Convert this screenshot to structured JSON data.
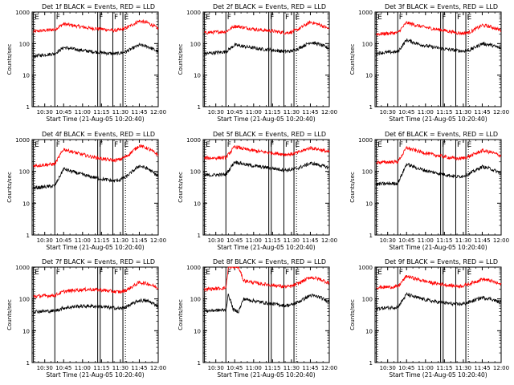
{
  "figure": {
    "panel_titles": [
      "Det 1f BLACK = Events, RED = LLD",
      "Det 2f BLACK = Events, RED = LLD",
      "Det 3f BLACK = Events, RED = LLD",
      "Det 4f BLACK = Events, RED = LLD",
      "Det 5f BLACK = Events, RED = LLD",
      "Det 6f BLACK = Events, RED = LLD",
      "Det 7f BLACK = Events, RED = LLD",
      "Det 8f BLACK = Events, RED = LLD",
      "Det 9f BLACK = Events, RED = LLD"
    ],
    "xlabel": "Start Time (21-Aug-05 10:20:40)",
    "ylabel": "Counts/sec"
  },
  "chart_data": {
    "type": "line",
    "layout": "3x3 grid of panels",
    "x_tick_labels": [
      "10:30",
      "10:45",
      "11:00",
      "11:15",
      "11:30",
      "11:45",
      "12:00"
    ],
    "x_tick_minutes": [
      30,
      45,
      60,
      75,
      90,
      105,
      120
    ],
    "x_range_minutes": [
      20,
      120
    ],
    "y_scale": "log",
    "y_range": [
      1,
      1000
    ],
    "y_tick_labels": [
      "1",
      "10",
      "100",
      "1000"
    ],
    "y_tick_values": [
      1,
      10,
      100,
      1000
    ],
    "flag_lines": [
      {
        "time": "10:21",
        "label": "E",
        "style": "solid"
      },
      {
        "time": "10:22",
        "label": "",
        "style": "dotted"
      },
      {
        "time": "10:38",
        "label": "F",
        "style": "solid"
      },
      {
        "time": "11:12",
        "label": "F",
        "style": "solid"
      },
      {
        "time": "11:14",
        "label": "",
        "style": "solid"
      },
      {
        "time": "11:24",
        "label": "F",
        "style": "solid"
      },
      {
        "time": "11:32",
        "label": "E",
        "style": "solid"
      },
      {
        "time": "11:34",
        "label": "",
        "style": "dotted"
      },
      {
        "time": "12:00",
        "label": "",
        "style": "dotted"
      }
    ],
    "colors": {
      "events": "#000000",
      "lld": "#ff0000"
    },
    "panels": [
      {
        "detector": "1f",
        "series": [
          {
            "name": "LLD",
            "color": "#ff0000",
            "x": [
              21,
              38,
              45,
              55,
              65,
              75,
              85,
              90,
              95,
              105,
              112,
              120
            ],
            "y": [
              240,
              280,
              420,
              360,
              310,
              290,
              260,
              270,
              320,
              520,
              450,
              300
            ]
          },
          {
            "name": "Events",
            "color": "#000000",
            "x": [
              21,
              38,
              45,
              55,
              65,
              75,
              85,
              90,
              95,
              105,
              112,
              120
            ],
            "y": [
              40,
              48,
              75,
              65,
              57,
              52,
              47,
              50,
              57,
              90,
              80,
              55
            ]
          }
        ]
      },
      {
        "detector": "2f",
        "series": [
          {
            "name": "LLD",
            "color": "#ff0000",
            "x": [
              21,
              38,
              45,
              55,
              65,
              75,
              85,
              90,
              95,
              105,
              112,
              120
            ],
            "y": [
              220,
              240,
              360,
              310,
              270,
              250,
              220,
              230,
              280,
              480,
              400,
              290
            ]
          },
          {
            "name": "Events",
            "color": "#000000",
            "x": [
              21,
              38,
              45,
              55,
              65,
              75,
              85,
              90,
              95,
              105,
              112,
              120
            ],
            "y": [
              48,
              55,
              90,
              78,
              68,
              62,
              56,
              58,
              68,
              110,
              95,
              70
            ]
          }
        ]
      },
      {
        "detector": "3f",
        "series": [
          {
            "name": "LLD",
            "color": "#ff0000",
            "x": [
              21,
              38,
              45,
              55,
              65,
              75,
              85,
              90,
              95,
              105,
              112,
              120
            ],
            "y": [
              200,
              220,
              460,
              360,
              300,
              260,
              220,
              210,
              230,
              380,
              340,
              260
            ]
          },
          {
            "name": "Events",
            "color": "#000000",
            "x": [
              21,
              38,
              45,
              55,
              65,
              75,
              85,
              90,
              95,
              105,
              112,
              120
            ],
            "y": [
              50,
              55,
              130,
              95,
              78,
              68,
              60,
              58,
              62,
              100,
              90,
              70
            ]
          }
        ]
      },
      {
        "detector": "4f",
        "series": [
          {
            "name": "LLD",
            "color": "#ff0000",
            "x": [
              21,
              38,
              45,
              55,
              65,
              75,
              85,
              90,
              95,
              105,
              112,
              120
            ],
            "y": [
              150,
              170,
              500,
              380,
              300,
              250,
              220,
              240,
              300,
              650,
              520,
              330
            ]
          },
          {
            "name": "Events",
            "color": "#000000",
            "x": [
              21,
              38,
              45,
              55,
              65,
              75,
              85,
              90,
              95,
              105,
              112,
              120
            ],
            "y": [
              30,
              35,
              120,
              90,
              70,
              58,
              50,
              55,
              70,
              150,
              120,
              70
            ]
          }
        ]
      },
      {
        "detector": "5f",
        "series": [
          {
            "name": "LLD",
            "color": "#ff0000",
            "x": [
              21,
              38,
              45,
              55,
              65,
              75,
              85,
              90,
              95,
              105,
              112,
              120
            ],
            "y": [
              260,
              270,
              600,
              480,
              420,
              380,
              340,
              350,
              390,
              550,
              490,
              400
            ]
          },
          {
            "name": "Events",
            "color": "#000000",
            "x": [
              21,
              38,
              45,
              55,
              65,
              75,
              85,
              90,
              95,
              105,
              112,
              120
            ],
            "y": [
              75,
              80,
              200,
              160,
              140,
              125,
              110,
              112,
              125,
              180,
              160,
              130
            ]
          }
        ]
      },
      {
        "detector": "6f",
        "series": [
          {
            "name": "LLD",
            "color": "#ff0000",
            "x": [
              21,
              38,
              45,
              55,
              65,
              75,
              85,
              90,
              95,
              105,
              112,
              120
            ],
            "y": [
              190,
              200,
              550,
              420,
              340,
              290,
              250,
              260,
              300,
              450,
              400,
              310
            ]
          },
          {
            "name": "Events",
            "color": "#000000",
            "x": [
              21,
              38,
              45,
              55,
              65,
              75,
              85,
              90,
              95,
              105,
              112,
              120
            ],
            "y": [
              40,
              42,
              170,
              120,
              95,
              80,
              68,
              72,
              85,
              140,
              120,
              85
            ]
          }
        ]
      },
      {
        "detector": "7f",
        "series": [
          {
            "name": "LLD",
            "color": "#ff0000",
            "x": [
              21,
              38,
              45,
              55,
              65,
              75,
              85,
              90,
              95,
              105,
              112,
              120
            ],
            "y": [
              120,
              130,
              170,
              190,
              200,
              190,
              170,
              165,
              190,
              330,
              300,
              220
            ]
          },
          {
            "name": "Events",
            "color": "#000000",
            "x": [
              21,
              38,
              45,
              55,
              65,
              75,
              85,
              90,
              95,
              105,
              112,
              120
            ],
            "y": [
              40,
              42,
              52,
              58,
              60,
              57,
              52,
              50,
              57,
              90,
              85,
              60
            ]
          }
        ]
      },
      {
        "detector": "8f",
        "series": [
          {
            "name": "LLD",
            "color": "#ff0000",
            "x": [
              21,
              38,
              40,
              44,
              48,
              52,
              65,
              75,
              85,
              90,
              95,
              105,
              112,
              120
            ],
            "y": [
              200,
              220,
              1000,
              1000,
              1000,
              380,
              300,
              270,
              240,
              250,
              300,
              480,
              420,
              320
            ]
          },
          {
            "name": "Events",
            "color": "#000000",
            "x": [
              21,
              38,
              40,
              44,
              48,
              52,
              65,
              75,
              85,
              90,
              95,
              105,
              112,
              120
            ],
            "y": [
              42,
              45,
              140,
              45,
              40,
              100,
              80,
              70,
              62,
              65,
              78,
              130,
              115,
              80
            ]
          }
        ]
      },
      {
        "detector": "9f",
        "series": [
          {
            "name": "LLD",
            "color": "#ff0000",
            "x": [
              21,
              38,
              45,
              55,
              65,
              75,
              85,
              90,
              95,
              105,
              112,
              120
            ],
            "y": [
              230,
              240,
              520,
              400,
              320,
              280,
              250,
              260,
              300,
              420,
              370,
              280
            ]
          },
          {
            "name": "Events",
            "color": "#000000",
            "x": [
              21,
              38,
              45,
              55,
              65,
              75,
              85,
              90,
              95,
              105,
              112,
              120
            ],
            "y": [
              50,
              55,
              140,
              105,
              85,
              75,
              68,
              70,
              80,
              110,
              100,
              75
            ]
          }
        ]
      }
    ]
  }
}
